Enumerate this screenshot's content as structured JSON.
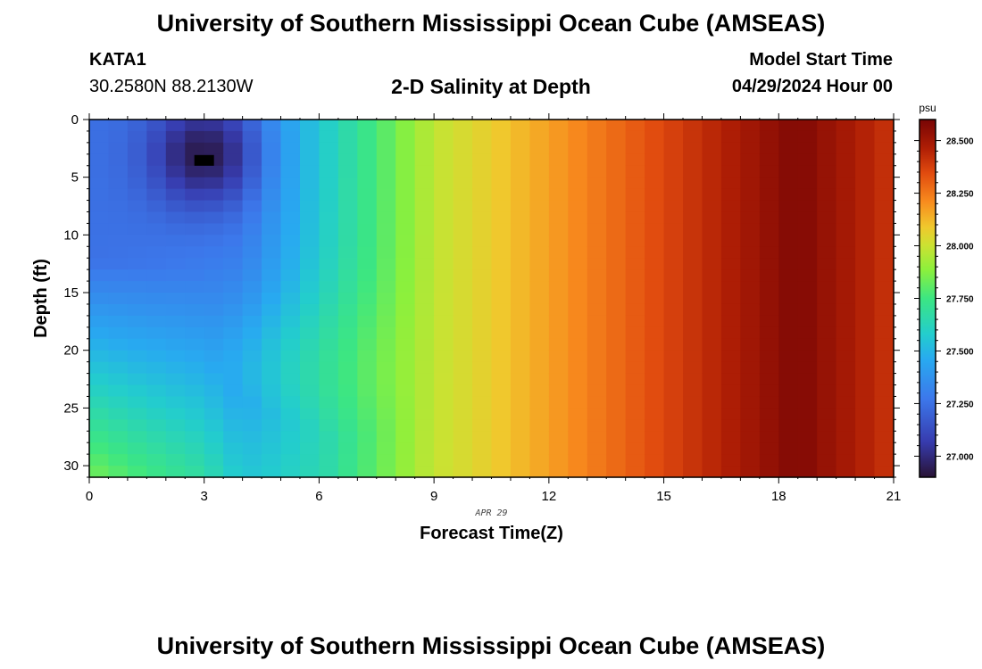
{
  "header": {
    "title": "University of Southern Mississippi Ocean Cube (AMSEAS)",
    "station_id": "KATA1",
    "station_coords": "30.2580N  88.2130W",
    "plot_title": "2-D Salinity at Depth",
    "model_start_label": "Model Start Time",
    "model_start_value": "04/29/2024 Hour 00"
  },
  "footer": {
    "title": "University of Southern Mississippi Ocean Cube (AMSEAS)"
  },
  "chart_data": {
    "type": "heatmap",
    "title": "2-D Salinity at Depth",
    "xlabel": "Forecast Time(Z)",
    "ylabel": "Depth (ft)",
    "x_date_label": "APR 29",
    "xlim": [
      0,
      21
    ],
    "ylim": [
      0,
      31
    ],
    "x_ticks": [
      "0",
      "3",
      "6",
      "9",
      "12",
      "15",
      "18",
      "21"
    ],
    "x_tick_values": [
      0,
      3,
      6,
      9,
      12,
      15,
      18,
      21
    ],
    "y_ticks": [
      "0",
      "5",
      "10",
      "15",
      "20",
      "25",
      "30"
    ],
    "y_tick_values": [
      0,
      5,
      10,
      15,
      20,
      25,
      30
    ],
    "colorbar": {
      "unit": "psu",
      "range": [
        26.9,
        28.6
      ],
      "ticks": [
        "27.000",
        "27.250",
        "27.500",
        "27.750",
        "28.000",
        "28.250",
        "28.500"
      ],
      "tick_values": [
        27.0,
        27.25,
        27.5,
        27.75,
        28.0,
        28.25,
        28.5
      ]
    },
    "field_description": {
      "time_step_hours": 0.5,
      "depth_step_ft": 1,
      "surface_minimum": {
        "time": 3,
        "depth": 3,
        "value": 26.92
      },
      "deep_value_at_time_0": 27.85,
      "mid_depth_value_at_time_3": 27.5,
      "peak_value": 28.58,
      "peak_time": 18.5,
      "value_at_time_21": 28.4
    },
    "marker": {
      "time": 3,
      "depth": 3
    }
  }
}
